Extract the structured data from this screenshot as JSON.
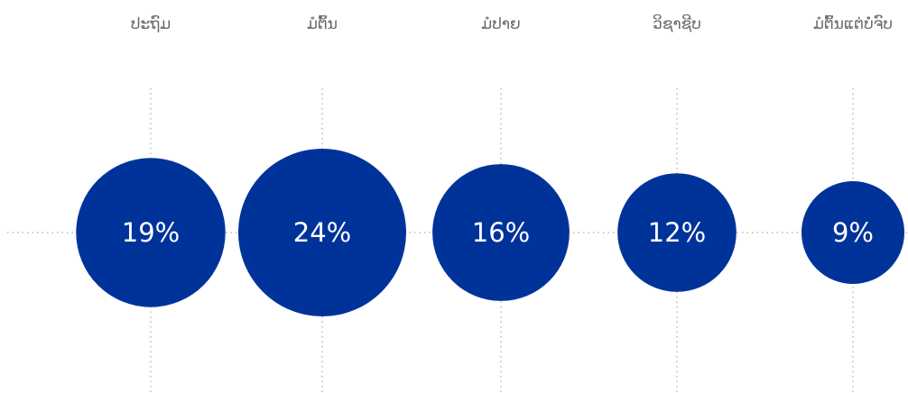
{
  "chart_data": {
    "type": "bubble",
    "categories": [
      "ປະຖົມ",
      "ມໍຕົ້ນ",
      "ມໍປາຍ",
      "ວິຊາຊີບ",
      "ມໍຕົ້ນແຕ່ບໍ່ຈົບ"
    ],
    "values": [
      19,
      24,
      16,
      12,
      9
    ],
    "value_labels": [
      "19%",
      "24%",
      "16%",
      "12%",
      "9%"
    ],
    "unit": "%",
    "grid": true
  },
  "colors": {
    "bubble": "#00339a",
    "bubble_text": "#ffffff",
    "category_text": "#6a6a6a",
    "grid": "#b8b8b8"
  }
}
